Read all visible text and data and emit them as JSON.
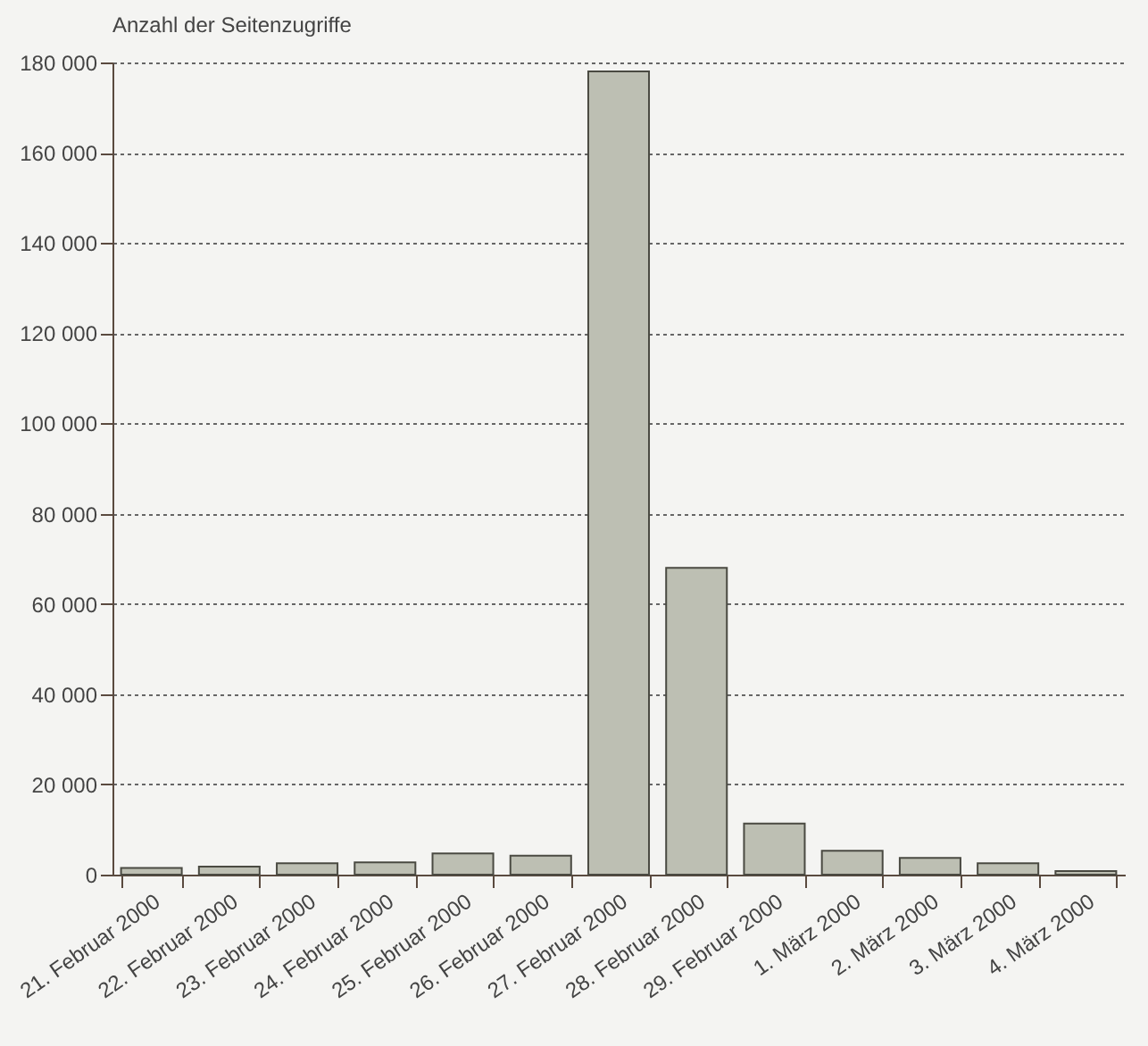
{
  "chart_data": {
    "type": "bar",
    "ylabel": "Anzahl der Seitenzugriffe",
    "categories": [
      "21. Februar 2000",
      "22. Februar 2000",
      "23. Februar 2000",
      "24. Februar 2000",
      "25. Februar 2000",
      "26. Februar 2000",
      "27. Februar 2000",
      "28. Februar 2000",
      "29. Februar 2000",
      "1. März 2000",
      "2. März 2000",
      "3. März 2000",
      "4. März 2000"
    ],
    "values": [
      1500,
      1800,
      2500,
      2700,
      4700,
      4200,
      178000,
      68000,
      11300,
      5300,
      3700,
      2500,
      800
    ],
    "color": "#bdbfb3",
    "ylim": [
      0,
      180000
    ],
    "yticks": [
      {
        "value": 0,
        "label": "0"
      },
      {
        "value": 20000,
        "label": "20 000"
      },
      {
        "value": 40000,
        "label": "40 000"
      },
      {
        "value": 60000,
        "label": "60 000"
      },
      {
        "value": 80000,
        "label": "80 000"
      },
      {
        "value": 100000,
        "label": "100 000"
      },
      {
        "value": 120000,
        "label": "120 000"
      },
      {
        "value": 140000,
        "label": "140 000"
      },
      {
        "value": 160000,
        "label": "160 000"
      },
      {
        "value": 180000,
        "label": "180 000"
      }
    ],
    "grid": "y"
  }
}
